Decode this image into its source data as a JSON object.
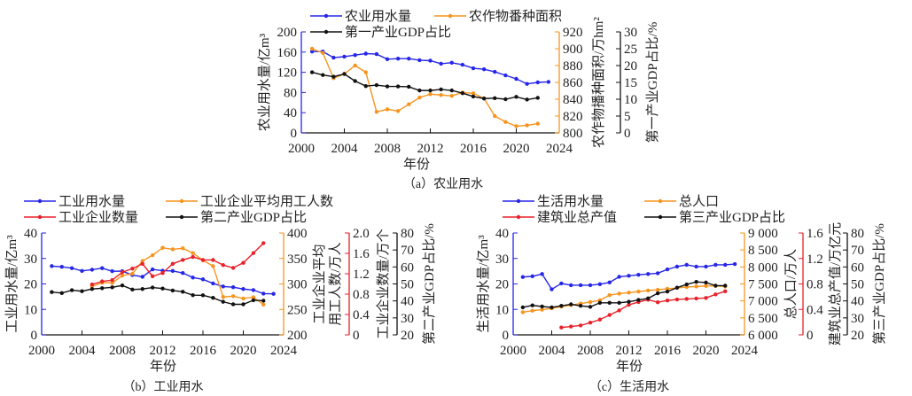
{
  "colors": {
    "blue": "#2626e8",
    "orange": "#f7941d",
    "red": "#e8212a",
    "black": "#111111"
  },
  "chart_data": [
    {
      "type": "line",
      "caption": "（a）农业用水",
      "xlabel": "年份",
      "xlim": [
        2000,
        2024
      ],
      "xticks": [
        "2000",
        "2004",
        "2008",
        "2012",
        "2016",
        "2020",
        "2024"
      ],
      "axes": [
        {
          "label": "农业用水量/亿m³",
          "range": [
            0,
            200
          ],
          "ticks": [
            "0",
            "40",
            "80",
            "120",
            "160",
            "200"
          ],
          "color": "blue"
        },
        {
          "label": "农作物播种面积/万hm²",
          "range": [
            800,
            920
          ],
          "ticks": [
            "800",
            "820",
            "840",
            "860",
            "880",
            "900",
            "920"
          ],
          "color": "orange"
        },
        {
          "label": "第一产业GDP占比/%",
          "range": [
            0,
            30
          ],
          "ticks": [
            "0",
            "5",
            "10",
            "15",
            "20",
            "25",
            "30"
          ],
          "color": "black"
        }
      ],
      "series": [
        {
          "name": "农业用水量",
          "axis": 0,
          "color": "blue",
          "start": 2001,
          "values": [
            161,
            161,
            149,
            151,
            154,
            157,
            156,
            146,
            147,
            147,
            144,
            143,
            137,
            139,
            135,
            128,
            126,
            121,
            114,
            107,
            97,
            100,
            101
          ]
        },
        {
          "name": "农作物番种面积",
          "axis": 1,
          "color": "orange",
          "start": 2001,
          "values": [
            900,
            895,
            865,
            870,
            880,
            872,
            825,
            828,
            826,
            834,
            842,
            846,
            845,
            844,
            848,
            847,
            841,
            820,
            813,
            808,
            809,
            811
          ]
        },
        {
          "name": "第一产业GDP占比",
          "axis": 2,
          "color": "black",
          "start": 2001,
          "values": [
            18,
            17.2,
            16.7,
            17.5,
            15.4,
            13.9,
            14.2,
            13.8,
            13.8,
            13.7,
            12.6,
            12.6,
            12.9,
            12.6,
            11.8,
            10.8,
            10.2,
            10.3,
            10.0,
            10.7,
            9.9,
            10.4
          ]
        }
      ]
    },
    {
      "type": "line",
      "caption": "（b）工业用水",
      "xlabel": "年份",
      "xlim": [
        2000,
        2024
      ],
      "xticks": [
        "2000",
        "2004",
        "2008",
        "2012",
        "2016",
        "2020",
        "2024"
      ],
      "axes": [
        {
          "label": "工业用水量/亿m³",
          "range": [
            0,
            40
          ],
          "ticks": [
            "0",
            "10",
            "20",
            "30",
            "40"
          ],
          "color": "blue"
        },
        {
          "label": "工业企业平均|用工人数/万人",
          "range": [
            200,
            400
          ],
          "ticks": [
            "200",
            "250",
            "300",
            "350",
            "400"
          ],
          "color": "orange"
        },
        {
          "label": "工业企业数量/万个",
          "range": [
            0,
            2.0
          ],
          "ticks": [
            "0",
            "0.4",
            "0.8",
            "1.2",
            "1.6",
            "2.0"
          ],
          "color": "red"
        },
        {
          "label": "第二产业GDP占比/%",
          "range": [
            20,
            80
          ],
          "ticks": [
            "20",
            "30",
            "40",
            "50",
            "60",
            "70",
            "80"
          ],
          "color": "black"
        }
      ],
      "series": [
        {
          "name": "工业用水量",
          "axis": 0,
          "color": "blue",
          "start": 2001,
          "values": [
            27,
            26.7,
            26.2,
            25.1,
            25.6,
            26.2,
            25,
            25,
            23.5,
            22.8,
            25.7,
            25.2,
            25.1,
            24.3,
            22.5,
            21.8,
            20.2,
            19,
            18.7,
            18,
            17.6,
            16.2,
            16.1
          ]
        },
        {
          "name": "工业企业平均用工人数",
          "axis": 1,
          "color": "orange",
          "start": 2005,
          "values": [
            295,
            302.5,
            302,
            316.5,
            320,
            345,
            356.5,
            371,
            368,
            370,
            360.5,
            346.5,
            335,
            274.5,
            276,
            271.5,
            274,
            259.5
          ]
        },
        {
          "name": "工业企业数量",
          "axis": 2,
          "color": "red",
          "start": 2005,
          "values": [
            0.99,
            1.05,
            1.075,
            1.23,
            1.3,
            1.395,
            1.15,
            1.215,
            1.395,
            1.47,
            1.53,
            1.47,
            1.47,
            1.37,
            1.315,
            1.415,
            1.605,
            1.8
          ]
        },
        {
          "name": "第二产业GDP占比",
          "axis": 3,
          "color": "black",
          "start": 2001,
          "values": [
            45.2,
            44.6,
            46.3,
            45.7,
            47,
            47.5,
            48,
            49.1,
            46.7,
            47,
            47.9,
            47.3,
            46.1,
            45.4,
            43.4,
            43.3,
            41.8,
            39.5,
            38,
            38,
            40.4,
            40.1
          ]
        }
      ]
    },
    {
      "type": "line",
      "caption": "（c）生活用水",
      "xlabel": "年份",
      "xlim": [
        2000,
        2024
      ],
      "xticks": [
        "2000",
        "2004",
        "2008",
        "2012",
        "2016",
        "2020",
        "2024"
      ],
      "axes": [
        {
          "label": "生活用水量/亿m³",
          "range": [
            0,
            40
          ],
          "ticks": [
            "0",
            "10",
            "20",
            "30",
            "40"
          ],
          "color": "blue"
        },
        {
          "label": "总人口/万人",
          "range": [
            6000,
            9000
          ],
          "ticks": [
            "6 000",
            "6 500",
            "7 000",
            "7 500",
            "8 000",
            "8 500",
            "9 000"
          ],
          "color": "orange"
        },
        {
          "label": "建筑业总产值/万亿元",
          "range": [
            0,
            1.6
          ],
          "ticks": [
            "0",
            "0.4",
            "0.8",
            "1.2",
            "1.6"
          ],
          "color": "red"
        },
        {
          "label": "第三产业GDP占比/%",
          "range": [
            20,
            80
          ],
          "ticks": [
            "20",
            "30",
            "40",
            "50",
            "60",
            "70",
            "80"
          ],
          "color": "black"
        }
      ],
      "series": [
        {
          "name": "生活用水量",
          "axis": 0,
          "color": "blue",
          "start": 2001,
          "values": [
            22.7,
            23,
            23.9,
            17.9,
            20.2,
            19.5,
            19.5,
            19.5,
            19.9,
            20.6,
            22.8,
            23.2,
            23.6,
            23.9,
            24.2,
            25.7,
            26.8,
            27.5,
            26.8,
            26.8,
            27.5,
            27.5,
            27.8
          ]
        },
        {
          "name": "总人口",
          "axis": 1,
          "color": "orange",
          "start": 2001,
          "values": [
            6667,
            6712,
            6742,
            6780,
            6832,
            6877,
            6922,
            6967,
            7020,
            7170,
            7215,
            7245,
            7275,
            7305,
            7327,
            7357,
            7380,
            7410,
            7425,
            7440,
            7440,
            7425
          ]
        },
        {
          "name": "建筑业总产值",
          "axis": 2,
          "color": "red",
          "start": 2005,
          "values": [
            0.116,
            0.132,
            0.148,
            0.192,
            0.24,
            0.312,
            0.384,
            0.472,
            0.516,
            0.552,
            0.512,
            0.54,
            0.556,
            0.564,
            0.572,
            0.58,
            0.636,
            0.684
          ]
        },
        {
          "name": "第三产业GDP占比",
          "axis": 3,
          "color": "black",
          "start": 2001,
          "values": [
            36.2,
            37.4,
            36.7,
            36.2,
            37.1,
            38,
            37.1,
            36.5,
            38.9,
            38.9,
            38.9,
            39.5,
            40.6,
            41.5,
            44.5,
            45.5,
            47.8,
            49.7,
            51.2,
            50.8,
            49,
            49
          ]
        }
      ]
    }
  ]
}
